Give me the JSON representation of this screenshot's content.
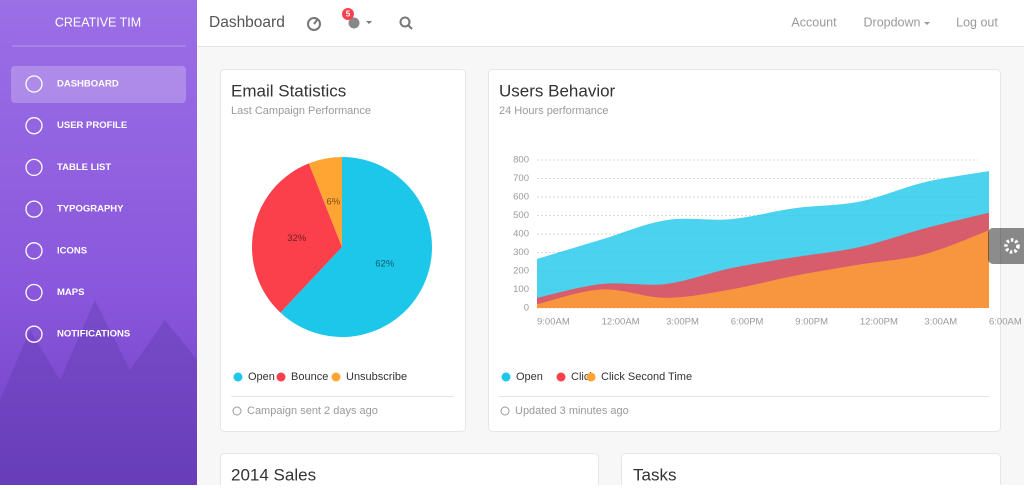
{
  "sidebar": {
    "brand": "CREATIVE TIM",
    "menu": [
      "DASHBOARD",
      "USER PROFILE",
      "TABLE LIST",
      "TYPOGRAPHY",
      "ICONS",
      "MAPS",
      "NOTIFICATIONS"
    ]
  },
  "navbar": {
    "title": "Dashboard",
    "notification_count": 5,
    "links": [
      "Account",
      "Dropdown",
      "Log out"
    ]
  },
  "cards": [
    {
      "title": "Email Statistics",
      "subtitle": "Last Campaign Performance",
      "chart": {
        "type": "pie",
        "categories": [
          "Open",
          "Bounce",
          "Unsubscribe"
        ],
        "values": [
          62,
          32,
          6
        ],
        "value_labels": [
          "62%",
          "32%",
          "6%"
        ],
        "colors": [
          "#1dc7ea",
          "#fb404b",
          "#ffa534"
        ]
      },
      "footer": "Campaign sent 2 days ago"
    },
    {
      "title": "Users Behavior",
      "subtitle": "24 Hours performance",
      "chart": {
        "type": "area",
        "categories": [
          "9:00AM",
          "12:00AM",
          "3:00PM",
          "6:00PM",
          "9:00PM",
          "12:00PM",
          "3:00AM",
          "6:00AM"
        ],
        "series": [
          {
            "name": "Open",
            "color": "#1dc7ea",
            "values": [
              265,
              370,
              475,
              480,
              540,
              575,
              680,
              740
            ]
          },
          {
            "name": "Click",
            "color": "#fb404b",
            "values": [
              55,
              130,
              130,
              215,
              275,
              330,
              430,
              515
            ]
          },
          {
            "name": "Click Second Time",
            "color": "#ffa534",
            "values": [
              20,
              100,
              55,
              100,
              175,
              235,
              290,
              420
            ]
          }
        ],
        "ylim": [
          0,
          800
        ],
        "yticks": [
          0,
          100,
          200,
          300,
          400,
          500,
          600,
          700,
          800
        ],
        "grid": true
      },
      "footer": "Updated 3 minutes ago"
    }
  ],
  "bottom_cards": [
    "2014 Sales",
    "Tasks"
  ]
}
